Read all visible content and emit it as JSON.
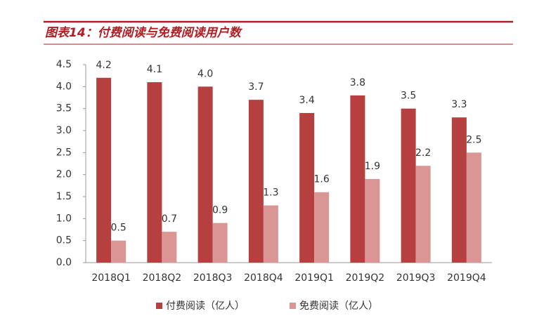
{
  "chart_data": {
    "type": "bar",
    "title": "图表14：付费阅读与免费阅读用户数",
    "categories": [
      "2018Q1",
      "2018Q2",
      "2018Q3",
      "2018Q4",
      "2019Q1",
      "2019Q2",
      "2019Q3",
      "2019Q4"
    ],
    "series": [
      {
        "name": "付费阅读（亿人）",
        "color": "#b5403f",
        "values": [
          4.2,
          4.1,
          4.0,
          3.7,
          3.4,
          3.8,
          3.5,
          3.3
        ],
        "value_labels": [
          "4.2",
          "4.1",
          "4.0",
          "3.7",
          "3.4",
          "3.8",
          "3.5",
          "3.3"
        ]
      },
      {
        "name": "免费阅读（亿人）",
        "color": "#d99694",
        "values": [
          0.5,
          0.7,
          0.9,
          1.3,
          1.6,
          1.9,
          2.2,
          2.5
        ],
        "value_labels": [
          "0.5",
          "0.7",
          "0.9",
          "1.3",
          "1.6",
          "1.9",
          "2.2",
          "2.5"
        ]
      }
    ],
    "ylim": [
      0,
      4.5
    ],
    "yticks": [
      {
        "value": 0,
        "label": "0.0"
      },
      0.5,
      {
        "value": 1,
        "label": "1.0"
      },
      1.5,
      {
        "value": 2,
        "label": "2.0"
      },
      2.5,
      {
        "value": 3,
        "label": "3.0"
      },
      3.5,
      {
        "value": 4,
        "label": "4.0"
      },
      4.5
    ],
    "grid": false,
    "legend": "bottom"
  }
}
